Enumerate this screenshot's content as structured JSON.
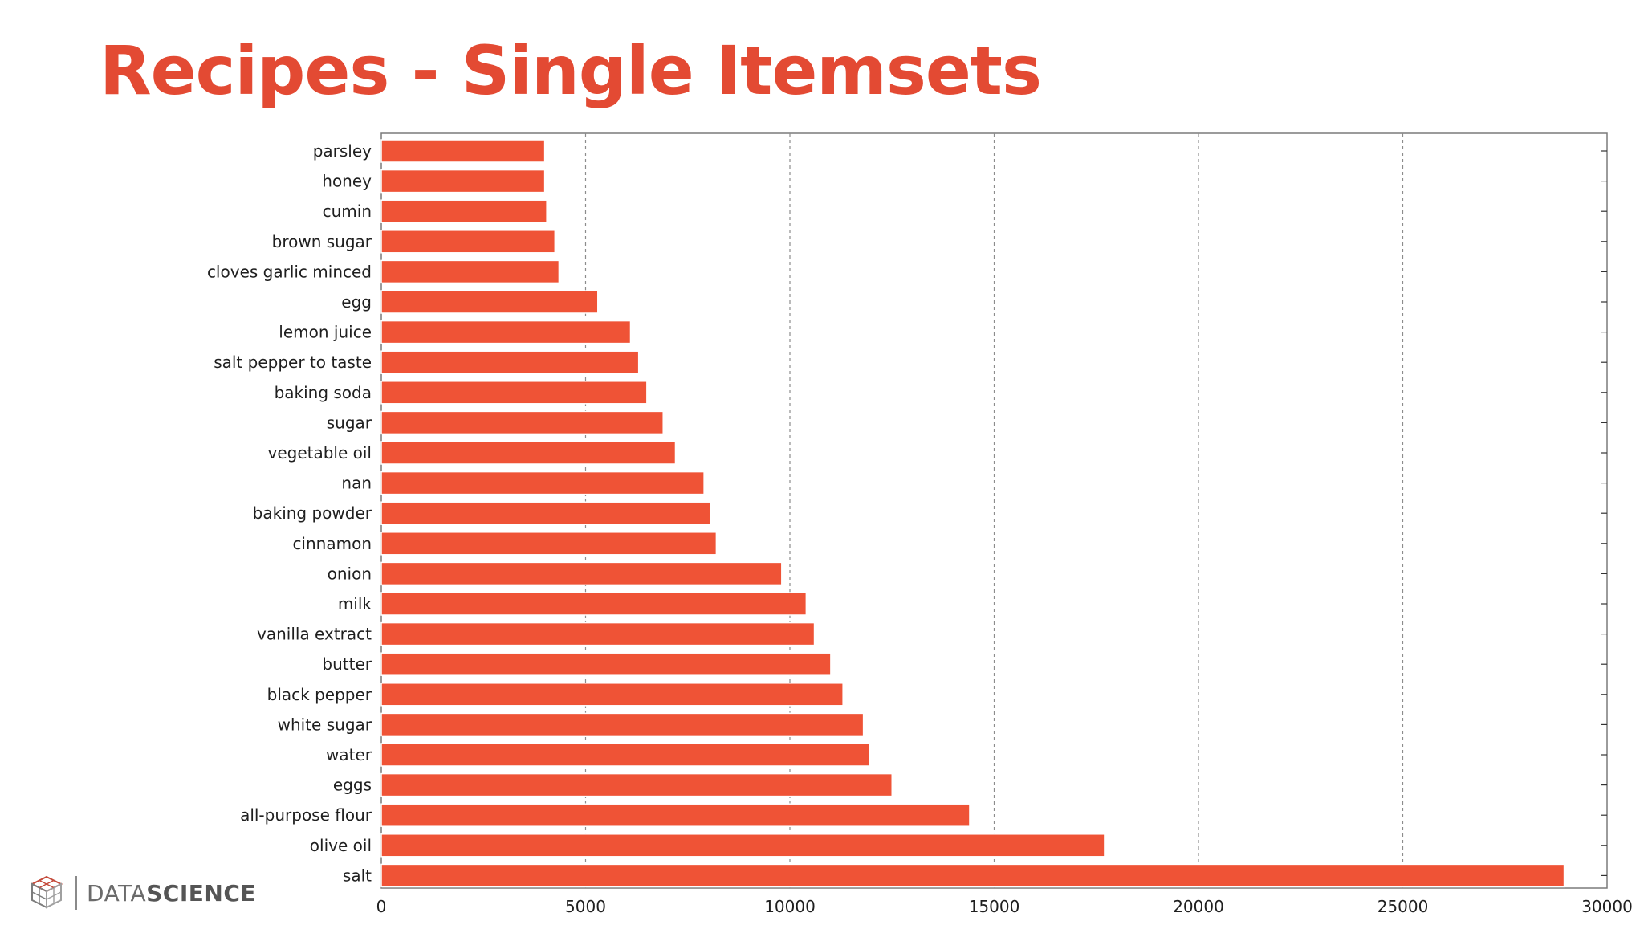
{
  "slide": {
    "title": "Recipes - Single Itemsets"
  },
  "logo": {
    "part1": "DATA",
    "part2": "SCIENCE"
  },
  "colors": {
    "title": "#e34a33",
    "bar": "#ef5336",
    "grid": "#8c8c8c"
  },
  "chart_data": {
    "type": "bar",
    "orientation": "horizontal",
    "categories": [
      "parsley",
      "honey",
      "cumin",
      "brown sugar",
      "cloves garlic minced",
      "egg",
      "lemon juice",
      "salt pepper to taste",
      "baking soda",
      "sugar",
      "vegetable oil",
      "nan",
      "baking powder",
      "cinnamon",
      "onion",
      "milk",
      "vanilla extract",
      "butter",
      "black pepper",
      "white sugar",
      "water",
      "eggs",
      "all-purpose flour",
      "olive oil",
      "salt"
    ],
    "values": [
      4000,
      4000,
      4050,
      4250,
      4350,
      5300,
      6100,
      6300,
      6500,
      6900,
      7200,
      7900,
      8050,
      8200,
      9800,
      10400,
      10600,
      11000,
      11300,
      11800,
      11950,
      12500,
      14400,
      17700,
      28950
    ],
    "xlim": [
      0,
      30000
    ],
    "xticks": [
      0,
      5000,
      10000,
      15000,
      20000,
      25000,
      30000
    ],
    "xtick_labels": [
      "0",
      "5000",
      "10000",
      "15000",
      "20000",
      "25000",
      "30000"
    ],
    "grid": "vertical dashed",
    "legend": "none"
  }
}
